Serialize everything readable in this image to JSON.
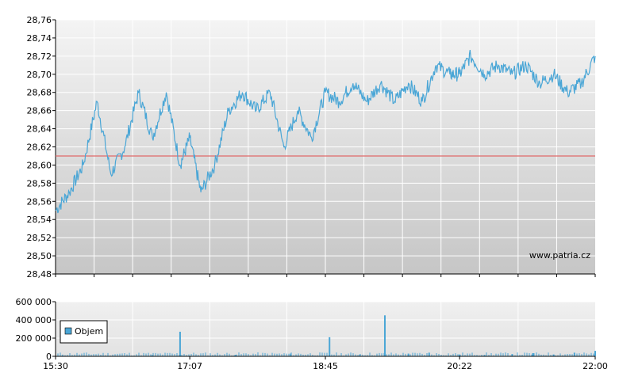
{
  "chart_data": [
    {
      "type": "line",
      "title": "",
      "xlabel": "",
      "ylabel": "",
      "ylim": [
        28.48,
        28.76
      ],
      "y_ticks": [
        "28,48",
        "28,50",
        "28,52",
        "28,54",
        "28,56",
        "28,58",
        "28,60",
        "28,62",
        "28,64",
        "28,66",
        "28,68",
        "28,70",
        "28,72",
        "28,74",
        "28,76"
      ],
      "reference_line": 28.61,
      "watermark": "www.patria.cz",
      "grid": true,
      "series": [
        {
          "color": "#4aa6d6",
          "x": [
            "15:30",
            "15:40",
            "15:50",
            "16:00",
            "16:10",
            "16:20",
            "16:30",
            "16:40",
            "16:50",
            "17:00",
            "17:07",
            "17:15",
            "17:25",
            "17:35",
            "17:45",
            "17:55",
            "18:05",
            "18:15",
            "18:25",
            "18:35",
            "18:45",
            "18:55",
            "19:05",
            "19:15",
            "19:25",
            "19:35",
            "19:45",
            "19:55",
            "20:05",
            "20:15",
            "20:22",
            "20:30",
            "20:40",
            "20:50",
            "21:00",
            "21:10",
            "21:20",
            "21:30",
            "21:40",
            "21:50",
            "22:00"
          ],
          "values": [
            28.55,
            28.57,
            28.6,
            28.67,
            28.59,
            28.62,
            28.68,
            28.63,
            28.68,
            28.6,
            28.63,
            28.57,
            28.6,
            28.66,
            28.68,
            28.66,
            28.68,
            28.62,
            28.66,
            28.63,
            28.68,
            28.67,
            28.69,
            28.67,
            28.69,
            28.67,
            28.69,
            28.67,
            28.71,
            28.7,
            28.7,
            28.72,
            28.7,
            28.71,
            28.7,
            28.71,
            28.69,
            28.7,
            28.68,
            28.69,
            28.72
          ]
        }
      ]
    },
    {
      "type": "bar",
      "title": "",
      "ylim": [
        0,
        600000
      ],
      "y_ticks": [
        "0",
        "200 000",
        "400 000",
        "600 000"
      ],
      "x_ticks": [
        "15:30",
        "17:07",
        "18:45",
        "20:22",
        "22:00"
      ],
      "legend": [
        "Objem"
      ],
      "legend_placement": "left",
      "series": [
        {
          "name": "Objem",
          "color": "#4aa6d6",
          "x": [
            "15:35",
            "16:40",
            "17:00",
            "17:40",
            "18:20",
            "18:48",
            "19:10",
            "19:28",
            "19:45",
            "20:00",
            "20:22",
            "20:40",
            "21:00",
            "21:15",
            "21:30",
            "21:45",
            "22:00"
          ],
          "values": [
            10000,
            12000,
            270000,
            15000,
            30000,
            210000,
            20000,
            450000,
            30000,
            40000,
            20000,
            15000,
            25000,
            35000,
            20000,
            40000,
            60000
          ]
        }
      ]
    }
  ]
}
